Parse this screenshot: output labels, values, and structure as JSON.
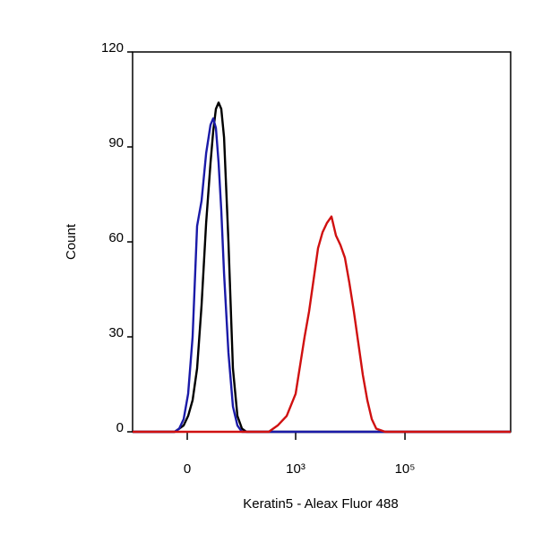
{
  "chart_data": {
    "type": "line",
    "x_label": "Keratin5 - Aleax Fluor 488",
    "y_label": "Count",
    "xscale": "asinh",
    "linear_width": 20.8,
    "xlim": [
      -103,
      8574000
    ],
    "xticks": [
      0,
      {
        "value": 1000,
        "label": "10³"
      },
      {
        "value": 100000,
        "label": "10⁵"
      }
    ],
    "ylim": [
      0,
      120
    ],
    "yticks": [
      0,
      30,
      60,
      90,
      120
    ],
    "x": [
      -103,
      -43,
      -22,
      -11.5,
      -7.2,
      -3.2,
      0.78,
      4.7,
      8.9,
      13.3,
      18.3,
      23.8,
      27.6,
      31.7,
      36.2,
      41.1,
      46.7,
      57.2,
      69.8,
      84.8,
      103,
      124.6,
      150.8,
      221,
      322,
      470,
      686,
      1000,
      1459,
      1761,
      2127,
      2569,
      3103,
      3747,
      4525,
      5465,
      6600,
      7971,
      9627,
      11626,
      14041,
      16957,
      20479,
      24733,
      29870,
      43566,
      63540,
      135100,
      610600,
      8574000
    ],
    "series": [
      {
        "name": "black",
        "color": "#000000",
        "values": [
          0,
          0,
          0,
          0,
          1,
          2,
          5,
          10,
          20,
          40,
          66,
          85,
          95,
          102,
          104,
          102,
          93,
          60,
          20,
          5,
          1,
          0,
          0,
          0,
          0,
          0,
          0,
          0,
          0,
          0,
          0,
          0,
          0,
          0,
          0,
          0,
          0,
          0,
          0,
          0,
          0,
          0,
          0,
          0,
          0,
          0,
          0,
          0,
          0,
          0
        ]
      },
      {
        "name": "blue",
        "color": "#1a1aa8",
        "values": [
          0,
          0,
          0,
          0,
          1,
          4,
          12,
          30,
          65,
          73,
          88,
          97,
          99,
          96,
          85,
          70,
          50,
          25,
          8,
          2,
          0,
          0,
          0,
          0,
          0,
          0,
          0,
          0,
          0,
          0,
          0,
          0,
          0,
          0,
          0,
          0,
          0,
          0,
          0,
          0,
          0,
          0,
          0,
          0,
          0,
          0,
          0,
          0,
          0,
          0
        ]
      },
      {
        "name": "red",
        "color": "#d01010",
        "values": [
          0,
          0,
          0,
          0,
          0,
          0,
          0,
          0,
          0,
          0,
          0,
          0,
          0,
          0,
          0,
          0,
          0,
          0,
          0,
          0,
          0,
          0,
          0,
          0,
          0,
          2,
          5,
          12,
          30,
          38,
          48,
          58,
          63,
          66,
          68,
          62,
          59,
          55,
          47,
          38,
          28,
          18,
          10,
          4,
          1,
          0,
          0,
          0,
          0,
          0
        ]
      }
    ]
  }
}
